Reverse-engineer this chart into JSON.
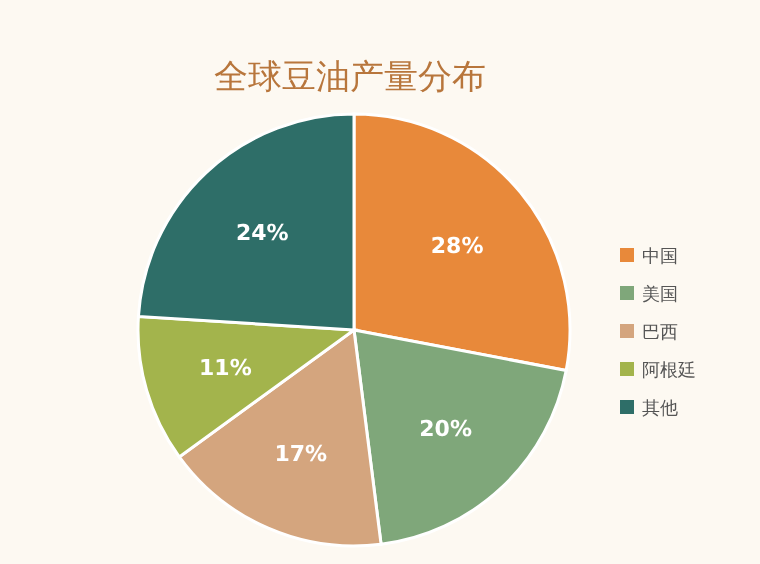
{
  "chart_data": {
    "type": "pie",
    "title": "全球豆油产量分布",
    "categories": [
      "中国",
      "美国",
      "巴西",
      "阿根廷",
      "其他"
    ],
    "values": [
      28,
      20,
      17,
      11,
      24
    ],
    "colors": [
      "#e8893a",
      "#7fa77a",
      "#d4a57e",
      "#a3b44c",
      "#2e6e68"
    ],
    "value_labels": [
      "28%",
      "20%",
      "17%",
      "11%",
      "24%"
    ],
    "legend": "right"
  }
}
